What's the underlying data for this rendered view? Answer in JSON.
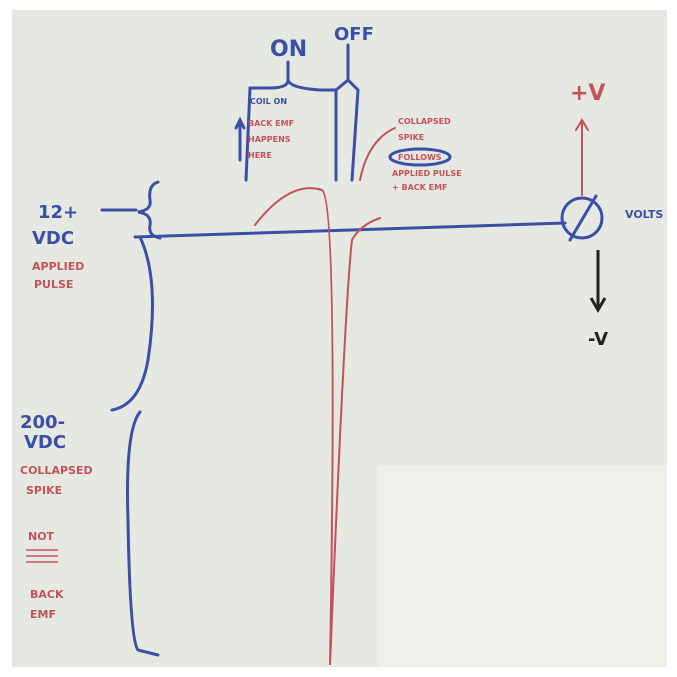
{
  "labels": {
    "on": "ON",
    "off": "OFF",
    "coil_on": "COIL ON",
    "back_emf_here": [
      "BACK EMF",
      "HAPPENS",
      "HERE"
    ],
    "collapsed_spike_note": [
      "COLLAPSED",
      "SPIKE"
    ],
    "follows": "FOLLOWS",
    "applied_pulse_note": [
      "APPLIED PULSE",
      "+ BACK EMF"
    ],
    "plus_v": "+V",
    "volts": "VOLTS",
    "minus_v": "-V",
    "v12": [
      "12+",
      "VDC"
    ],
    "applied_pulse": [
      "APPLIED",
      "PULSE"
    ],
    "v200": [
      "200-",
      "VDC"
    ],
    "collapsed_spike": [
      "COLLAPSED",
      "SPIKE"
    ],
    "not": "NOT",
    "back_emf": [
      "BACK",
      "EMF"
    ]
  }
}
